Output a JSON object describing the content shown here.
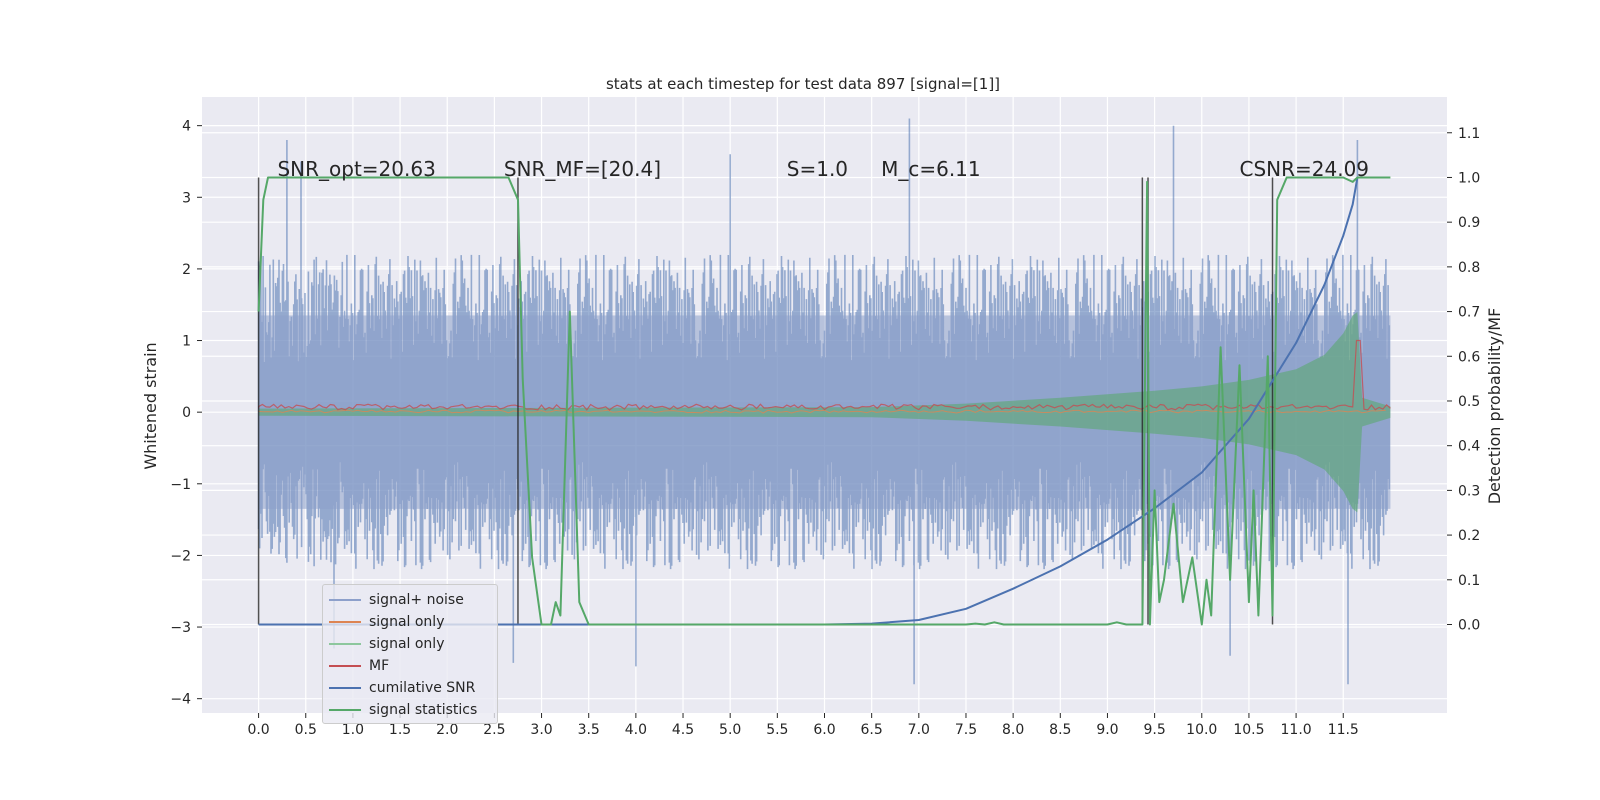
{
  "chart_data": {
    "type": "line",
    "title": "stats at each timestep for test data 897 [signal=[1]]",
    "ylabel": "Whitened strain",
    "ylabel_right": "Detection probability/MF",
    "xlim": [
      -0.6,
      12.6
    ],
    "ylim": [
      -4.2,
      4.4
    ],
    "ylim_right": [
      -0.198,
      1.18
    ],
    "x_ticks": [
      "0.0",
      "0.5",
      "1.0",
      "1.5",
      "2.0",
      "2.5",
      "3.0",
      "3.5",
      "4.0",
      "4.5",
      "5.0",
      "5.5",
      "6.0",
      "6.5",
      "7.0",
      "7.5",
      "8.0",
      "8.5",
      "9.0",
      "9.5",
      "10.0",
      "10.5",
      "11.0",
      "11.5"
    ],
    "y_ticks": [
      "−4",
      "−3",
      "−2",
      "−1",
      "0",
      "1",
      "2",
      "3",
      "4"
    ],
    "y_ticks_right": [
      "0.0",
      "0.1",
      "0.2",
      "0.3",
      "0.4",
      "0.5",
      "0.6",
      "0.7",
      "0.8",
      "0.9",
      "1.0",
      "1.1"
    ],
    "grid": true,
    "background": "#eaeaf2",
    "annotations": [
      {
        "text": "SNR_opt=20.63",
        "x": 0.2,
        "y": 3.3
      },
      {
        "text": "SNR_MF=[20.4]",
        "x": 2.6,
        "y": 3.3
      },
      {
        "text": "S=1.0",
        "x": 5.6,
        "y": 3.3
      },
      {
        "text": "M_c=6.11",
        "x": 6.6,
        "y": 3.3
      },
      {
        "text": "CSNR=24.09",
        "x": 10.4,
        "y": 3.3
      }
    ],
    "noise_band": {
      "x_start": 0.0,
      "x_end": 12.0,
      "typical_upper": 2.0,
      "typical_lower": -2.0,
      "spikes": [
        [
          0.3,
          3.8
        ],
        [
          0.45,
          3.5
        ],
        [
          5.0,
          3.6
        ],
        [
          6.9,
          4.1
        ],
        [
          9.7,
          4.0
        ],
        [
          11.65,
          3.8
        ],
        [
          0.8,
          -3.3
        ],
        [
          2.7,
          -3.5
        ],
        [
          4.0,
          -3.55
        ],
        [
          6.95,
          -3.8
        ],
        [
          10.3,
          -3.4
        ],
        [
          11.55,
          -3.8
        ]
      ]
    },
    "signal_envelope": {
      "x": [
        0,
        6.5,
        7.5,
        8.5,
        9.5,
        10.0,
        10.5,
        11.0,
        11.3,
        11.5,
        11.6,
        11.65,
        11.7,
        12.0
      ],
      "amplitude": [
        0.05,
        0.07,
        0.12,
        0.2,
        0.3,
        0.36,
        0.45,
        0.6,
        0.8,
        1.1,
        1.35,
        1.4,
        0.2,
        0.08
      ]
    },
    "vertical_lines": [
      0.0,
      2.75,
      9.37,
      9.43,
      10.75
    ],
    "series": [
      {
        "name": "signal+ noise",
        "color": "#4c72b0"
      },
      {
        "name": "signal only",
        "color": "#dd8452"
      },
      {
        "name": "signal only",
        "color": "#55a868"
      },
      {
        "name": "MF",
        "color": "#c44e52",
        "peak": {
          "x": 11.65,
          "y": 1.0
        }
      },
      {
        "name": "cumilative SNR",
        "color": "#4c72b0",
        "axis": "right",
        "x": [
          0,
          6.0,
          6.5,
          7.0,
          7.5,
          8.0,
          8.5,
          9.0,
          9.5,
          10.0,
          10.5,
          11.0,
          11.3,
          11.5,
          11.6,
          11.65
        ],
        "y": [
          0.0,
          0.0,
          0.002,
          0.01,
          0.035,
          0.08,
          0.13,
          0.19,
          0.26,
          0.34,
          0.46,
          0.63,
          0.76,
          0.87,
          0.94,
          1.0
        ]
      },
      {
        "name": "signal statistics",
        "color": "#55a868",
        "axis": "right",
        "x": [
          0.0,
          0.05,
          0.1,
          0.2,
          2.5,
          2.65,
          2.75,
          2.8,
          2.9,
          3.0,
          3.1,
          3.15,
          3.2,
          3.3,
          3.4,
          3.5,
          7.5,
          7.6,
          7.7,
          7.8,
          7.9,
          8.0,
          9.0,
          9.1,
          9.2,
          9.37,
          9.42,
          9.45,
          9.5,
          9.55,
          9.6,
          9.7,
          9.8,
          9.9,
          10.0,
          10.05,
          10.1,
          10.2,
          10.3,
          10.4,
          10.5,
          10.55,
          10.6,
          10.7,
          10.75,
          10.8,
          10.9,
          11.0,
          11.5,
          11.6,
          11.65,
          11.7,
          12.0
        ],
        "y": [
          0.7,
          0.95,
          1.0,
          1.0,
          1.0,
          1.0,
          0.95,
          0.55,
          0.15,
          0.0,
          0.0,
          0.05,
          0.02,
          0.7,
          0.05,
          0.0,
          0.0,
          0.002,
          0.0,
          0.005,
          0.0,
          0.0,
          0.0,
          0.005,
          0.0,
          0.0,
          0.99,
          0.0,
          0.3,
          0.05,
          0.1,
          0.27,
          0.05,
          0.15,
          0.0,
          0.1,
          0.02,
          0.62,
          0.1,
          0.58,
          0.05,
          0.3,
          0.02,
          0.6,
          0.02,
          0.95,
          1.0,
          1.0,
          1.0,
          0.99,
          1.0,
          1.0,
          1.0
        ]
      }
    ],
    "legend": {
      "placement": "lower-left",
      "entries": [
        "signal+ noise",
        "signal only",
        "signal only",
        "MF",
        "cumilative SNR",
        "signal statistics"
      ]
    }
  }
}
